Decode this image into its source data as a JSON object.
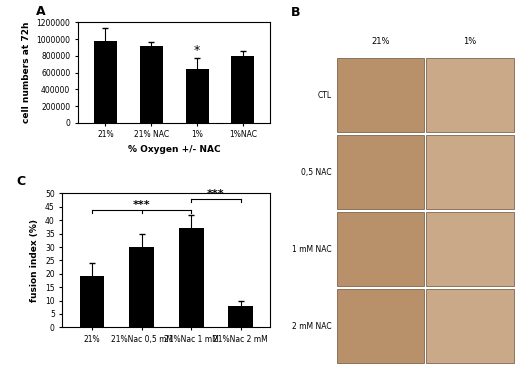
{
  "chart_data": [
    {
      "type": "bar",
      "title": "A",
      "categories": [
        "21%",
        "21% NAC",
        "1%",
        "1%NAC"
      ],
      "values": [
        980000,
        920000,
        640000,
        800000
      ],
      "errors": [
        150000,
        50000,
        130000,
        60000
      ],
      "color": "#000000",
      "xlabel": "% Oxygen +/- NAC",
      "ylabel": "cell numbers at 72h",
      "ylim": [
        0,
        1200000
      ],
      "yticks": [
        0,
        200000,
        400000,
        600000,
        800000,
        1000000,
        1200000
      ],
      "grid": false,
      "annotations": [
        {
          "text": "*",
          "category": "1%"
        }
      ]
    },
    {
      "type": "bar",
      "title": "C",
      "categories": [
        "21%",
        "21%Nac 0,5 mM",
        "21%Nac 1 mM",
        "21%Nac 2 mM"
      ],
      "values": [
        19,
        30,
        37,
        8
      ],
      "errors": [
        5,
        5,
        5,
        2
      ],
      "color": "#000000",
      "ylabel": "fusion index (%)",
      "ylim": [
        0,
        50
      ],
      "yticks": [
        0,
        5,
        10,
        15,
        20,
        25,
        30,
        35,
        40,
        45,
        50
      ],
      "grid": false,
      "annotations": [
        {
          "text": "***",
          "from": "21%",
          "to": "21%Nac 1 mM"
        },
        {
          "text": "***",
          "from": "21%Nac 1 mM",
          "to": "21%Nac 2 mM"
        }
      ]
    }
  ],
  "image_panel": {
    "title": "B",
    "columns": [
      "21%",
      "1%"
    ],
    "rows": [
      "CTL",
      "0,5 NAC",
      "1 mM NAC",
      "2 mM NAC"
    ]
  }
}
